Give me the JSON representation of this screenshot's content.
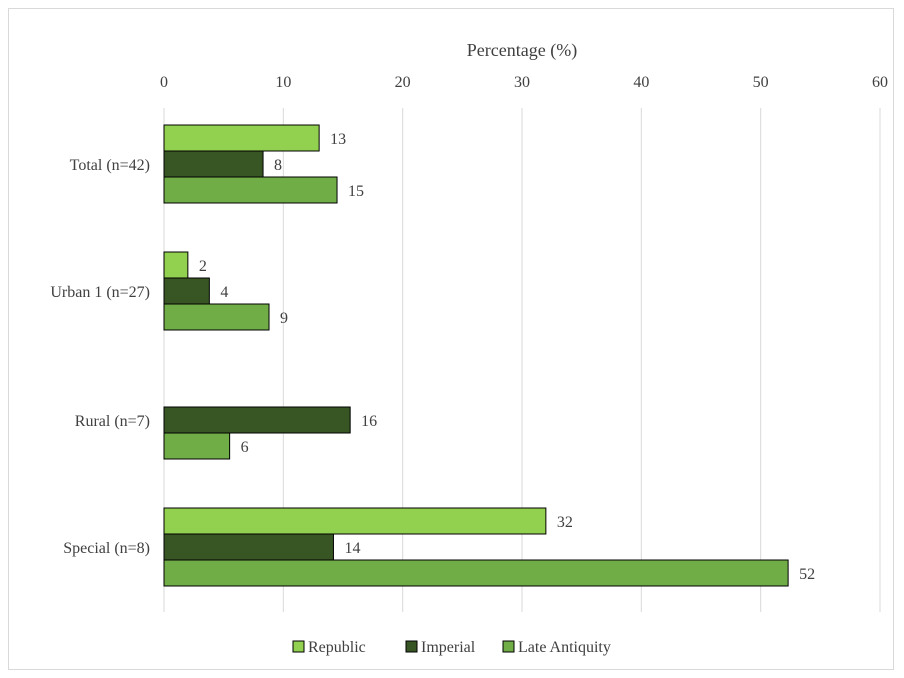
{
  "chart_data": {
    "type": "bar",
    "orientation": "horizontal",
    "xlabel": "Percentage (%)",
    "xlim": [
      0,
      60
    ],
    "x_ticks": [
      0,
      10,
      20,
      30,
      40,
      50,
      60
    ],
    "x_tick_labels": [
      "0",
      "10",
      "20",
      "30",
      "40",
      "50",
      "60"
    ],
    "categories": [
      "Total (n=42)",
      "Urban 1 (n=27)",
      "Rural (n=7)",
      "Special (n=8)"
    ],
    "series": [
      {
        "name": "Republic",
        "color": "#92d050",
        "values": [
          13,
          2,
          null,
          32
        ],
        "labels": [
          "13",
          "2",
          "",
          "32"
        ]
      },
      {
        "name": "Imperial",
        "color": "#375623",
        "values": [
          8.3,
          3.8,
          15.6,
          14.2
        ],
        "labels": [
          "8",
          "4",
          "16",
          "14"
        ]
      },
      {
        "name": "Late Antiquity",
        "color": "#70ad47",
        "values": [
          14.5,
          8.8,
          5.5,
          52.3
        ],
        "labels": [
          "15",
          "9",
          "6",
          "52"
        ]
      }
    ],
    "grid": true,
    "legend_position": "bottom",
    "axis_position": "top"
  }
}
